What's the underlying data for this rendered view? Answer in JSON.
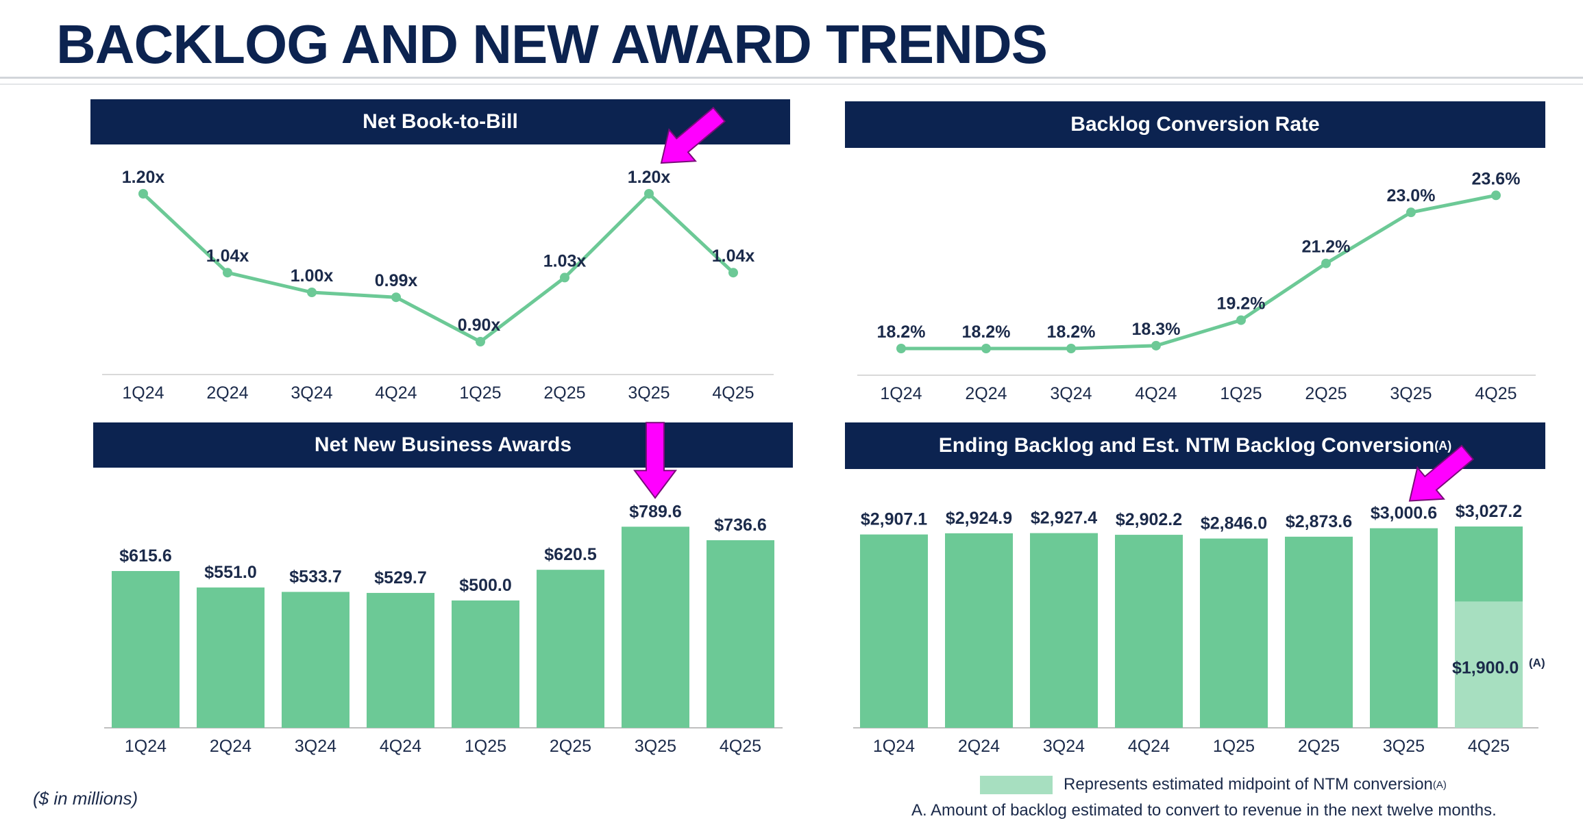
{
  "page": {
    "title": "BACKLOG AND NEW AWARD TRENDS",
    "units_note": "($ in millions)",
    "legend_label": "Represents estimated midpoint of NTM conversion",
    "legend_sup": "(A)",
    "footnote": "A. Amount of backlog estimated to convert to revenue in the next twelve months."
  },
  "colors": {
    "navy": "#0c2350",
    "green": "#6cc996",
    "light_green": "#a7dfc0",
    "arrow": "#ff00ff",
    "label": "#1b2a4a"
  },
  "chart_data": [
    {
      "id": "book_to_bill",
      "type": "line",
      "title": "Net Book-to-Bill",
      "categories": [
        "1Q24",
        "2Q24",
        "3Q24",
        "4Q24",
        "1Q25",
        "2Q25",
        "3Q25",
        "4Q25"
      ],
      "values": [
        1.2,
        1.04,
        1.0,
        0.99,
        0.9,
        1.03,
        1.2,
        1.04
      ],
      "labels": [
        "1.20x",
        "1.04x",
        "1.00x",
        "0.99x",
        "0.90x",
        "1.03x",
        "1.20x",
        "1.04x"
      ],
      "ylim": [
        0.85,
        1.25
      ],
      "highlight_index": 6
    },
    {
      "id": "conversion_rate",
      "type": "line",
      "title": "Backlog Conversion Rate",
      "categories": [
        "1Q24",
        "2Q24",
        "3Q24",
        "4Q24",
        "1Q25",
        "2Q25",
        "3Q25",
        "4Q25"
      ],
      "values": [
        18.2,
        18.2,
        18.2,
        18.3,
        19.2,
        21.2,
        23.0,
        23.6
      ],
      "labels": [
        "18.2%",
        "18.2%",
        "18.2%",
        "18.3%",
        "19.2%",
        "21.2%",
        "23.0%",
        "23.6%"
      ],
      "ylim": [
        17.5,
        24.5
      ]
    },
    {
      "id": "new_awards",
      "type": "bar",
      "title": "Net New Business Awards",
      "categories": [
        "1Q24",
        "2Q24",
        "3Q24",
        "4Q24",
        "1Q25",
        "2Q25",
        "3Q25",
        "4Q25"
      ],
      "values": [
        615.6,
        551.0,
        533.7,
        529.7,
        500.0,
        620.5,
        789.6,
        736.6
      ],
      "labels": [
        "$615.6",
        "$551.0",
        "$533.7",
        "$529.7",
        "$500.0",
        "$620.5",
        "$789.6",
        "$736.6"
      ],
      "ylim": [
        0,
        1000
      ],
      "highlight_index": 6
    },
    {
      "id": "ending_backlog",
      "type": "bar",
      "title": "Ending Backlog and Est. NTM Backlog Conversion",
      "title_sup": "(A)",
      "categories": [
        "1Q24",
        "2Q24",
        "3Q24",
        "4Q24",
        "1Q25",
        "2Q25",
        "3Q25",
        "4Q25"
      ],
      "values": [
        2907.1,
        2924.9,
        2927.4,
        2902.2,
        2846.0,
        2873.6,
        3000.6,
        3027.2
      ],
      "labels": [
        "$2,907.1",
        "$2,924.9",
        "$2,927.4",
        "$2,902.2",
        "$2,846.0",
        "$2,873.6",
        "$3,000.6",
        "$3,027.2"
      ],
      "ylim": [
        0,
        3500
      ],
      "ntm_conversion": {
        "index": 7,
        "value": 1900.0,
        "label": "$1,900.0",
        "sup": "(A)"
      },
      "highlight_index": 6
    }
  ]
}
